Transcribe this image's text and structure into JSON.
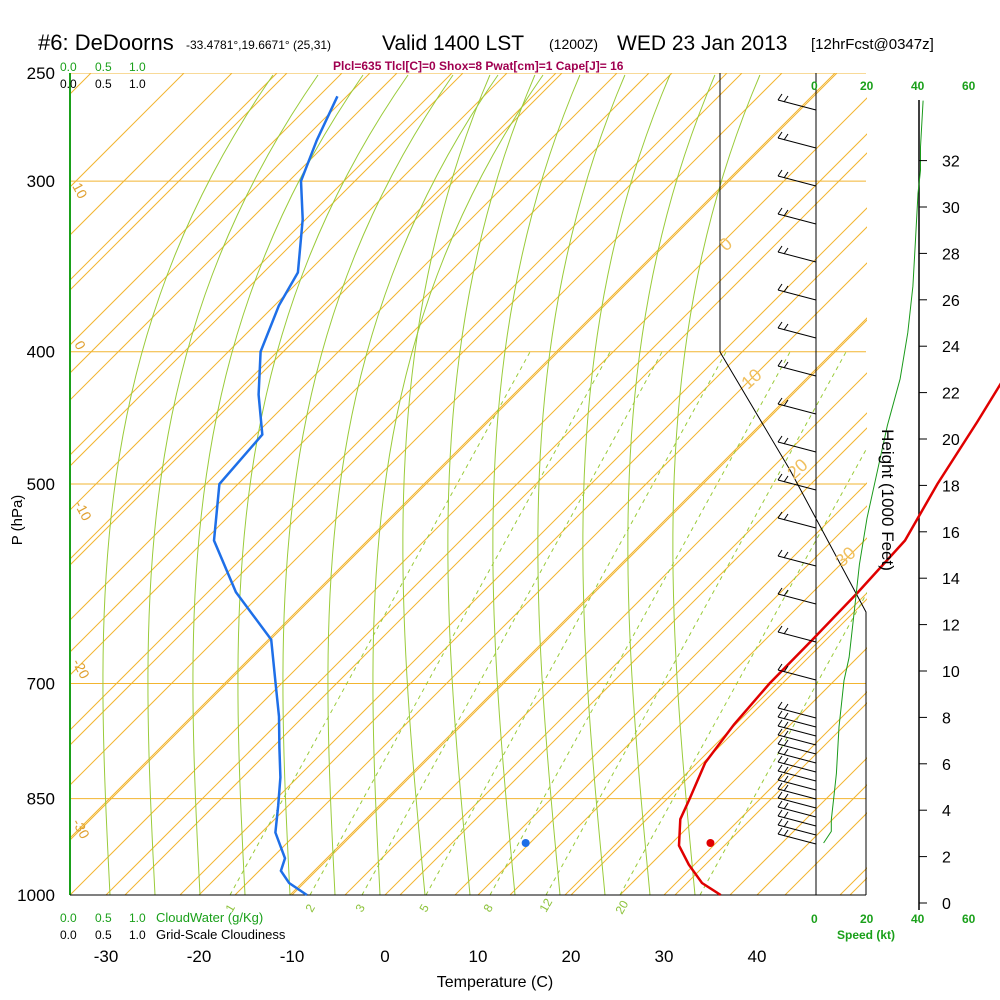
{
  "header": {
    "station": "#6: DeDoorns",
    "coords": "-33.4781°,19.6671° (25,31)",
    "valid_label": "Valid 1400 LST",
    "utc_label": "(1200Z)",
    "date_label": "WED 23 Jan 2013",
    "forecast_label": "[12hrFcst@0347z]",
    "indices": "Plcl=635 Tlcl[C]=0 Shox=8 Pwat[cm]=1 Cape[J]= 16"
  },
  "axes": {
    "xlabel": "Temperature (C)",
    "ylabel": "P (hPa)",
    "height_label": "Height (1000 Feet)",
    "speed_label": "Speed (kt)",
    "cloudwater_label": "CloudWater (g/Kg)",
    "cloudiness_label": "Grid-Scale Cloudiness",
    "x_ticks": [
      "-30",
      "-20",
      "-10",
      "0",
      "10",
      "20",
      "30",
      "40"
    ],
    "p_ticks": [
      "250",
      "300",
      "400",
      "500",
      "700",
      "850",
      "1000"
    ],
    "height_ticks": [
      "0",
      "2",
      "4",
      "6",
      "8",
      "10",
      "12",
      "14",
      "16",
      "18",
      "20",
      "22",
      "24",
      "26",
      "28",
      "30",
      "32"
    ],
    "cloudwater_ticks": [
      "0.0",
      "0.5",
      "1.0"
    ],
    "cloudiness_ticks": [
      "0.0",
      "0.5",
      "1.0"
    ],
    "speed_ticks_top": [
      "0",
      "20",
      "40",
      "60"
    ],
    "speed_ticks_bottom": [
      "0",
      "20",
      "40",
      "60"
    ],
    "isotherm_labels": [
      "10",
      "0",
      "-10",
      "-20",
      "-30",
      "0",
      "10",
      "20",
      "30"
    ],
    "mixing_ratio_labels": [
      "1",
      "2",
      "3",
      "5",
      "8",
      "12",
      "20"
    ]
  },
  "chart_data": {
    "type": "line",
    "xlim": [
      -35,
      50
    ],
    "plim": [
      1000,
      250
    ],
    "series": [
      {
        "role": "temperature",
        "color": "#e00000",
        "points": [
          [
            1000,
            36.1
          ],
          [
            980,
            32.8
          ],
          [
            950,
            29.4
          ],
          [
            920,
            26.3
          ],
          [
            880,
            23.6
          ],
          [
            850,
            22.4
          ],
          [
            800,
            20.2
          ],
          [
            750,
            19.2
          ],
          [
            700,
            18.6
          ],
          [
            650,
            18.5
          ],
          [
            600,
            18.3
          ],
          [
            550,
            17.8
          ],
          [
            500,
            15.2
          ],
          [
            450,
            12.8
          ],
          [
            400,
            9.9
          ],
          [
            350,
            4.9
          ],
          [
            300,
            -3.3
          ],
          [
            260,
            -8.8
          ]
        ]
      },
      {
        "role": "dewpoint",
        "color": "#1e6fe8",
        "points": [
          [
            1000,
            -8.4
          ],
          [
            980,
            -11.6
          ],
          [
            960,
            -13.8
          ],
          [
            940,
            -14.7
          ],
          [
            900,
            -18.5
          ],
          [
            860,
            -21.1
          ],
          [
            820,
            -23.9
          ],
          [
            780,
            -27.2
          ],
          [
            740,
            -30.6
          ],
          [
            700,
            -34.5
          ],
          [
            650,
            -39.7
          ],
          [
            600,
            -48.6
          ],
          [
            550,
            -56.5
          ],
          [
            500,
            -62.0
          ],
          [
            460,
            -62.7
          ],
          [
            430,
            -67.4
          ],
          [
            400,
            -71.8
          ],
          [
            370,
            -74.8
          ],
          [
            350,
            -76.3
          ],
          [
            320,
            -81.5
          ],
          [
            300,
            -85.8
          ],
          [
            280,
            -88.5
          ],
          [
            260,
            -91.0
          ]
        ]
      }
    ],
    "surface_markers": [
      {
        "role": "surface temperature",
        "p": 1000,
        "t": 36.5,
        "color": "#e00000"
      },
      {
        "role": "surface dewpoint",
        "p": 1000,
        "t": 16.2,
        "color": "#1e6fe8"
      }
    ],
    "wind_speed_profile": {
      "color": "#1a9a1a",
      "points": [
        [
          0.0,
          3
        ],
        [
          0.5,
          6
        ],
        [
          1,
          6
        ],
        [
          2,
          7
        ],
        [
          3,
          8
        ],
        [
          5,
          9
        ],
        [
          6,
          10
        ],
        [
          7,
          11
        ],
        [
          8,
          13
        ],
        [
          10,
          15
        ],
        [
          12,
          17
        ],
        [
          14,
          20
        ],
        [
          16,
          24
        ],
        [
          18,
          28
        ],
        [
          20,
          33
        ],
        [
          22,
          36
        ],
        [
          24,
          38
        ],
        [
          26,
          39
        ],
        [
          28,
          40
        ],
        [
          29,
          41
        ],
        [
          30,
          41
        ],
        [
          32,
          42
        ]
      ]
    }
  }
}
